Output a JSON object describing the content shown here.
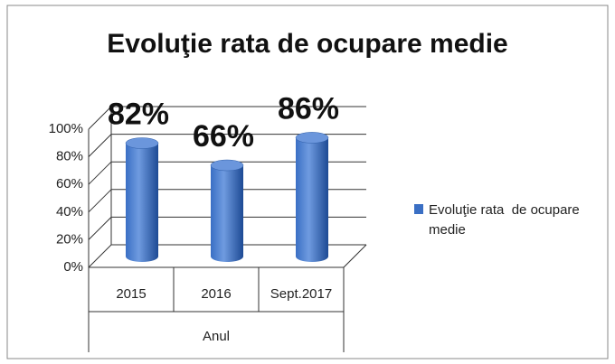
{
  "chart_data": {
    "type": "bar",
    "title": "Evoluţie rata  de ocupare medie",
    "categories": [
      "2015",
      "2016",
      "Sept.2017"
    ],
    "x_label": "Anul",
    "series": [
      {
        "name": "Evoluţie rata  de ocupare medie",
        "color": "#3a6fc4",
        "values": [
          82,
          66,
          86
        ],
        "value_labels": [
          "82%",
          "66%",
          "86%"
        ]
      }
    ],
    "ylim": [
      0,
      100
    ],
    "yticks": [
      {
        "value": 0,
        "label": "0%"
      },
      {
        "value": 20,
        "label": "20%"
      },
      {
        "value": 40,
        "label": "40%"
      },
      {
        "value": 60,
        "label": "60%"
      },
      {
        "value": 80,
        "label": "80%"
      },
      {
        "value": 100,
        "label": "100%"
      }
    ],
    "grid": true,
    "legend": "right"
  }
}
